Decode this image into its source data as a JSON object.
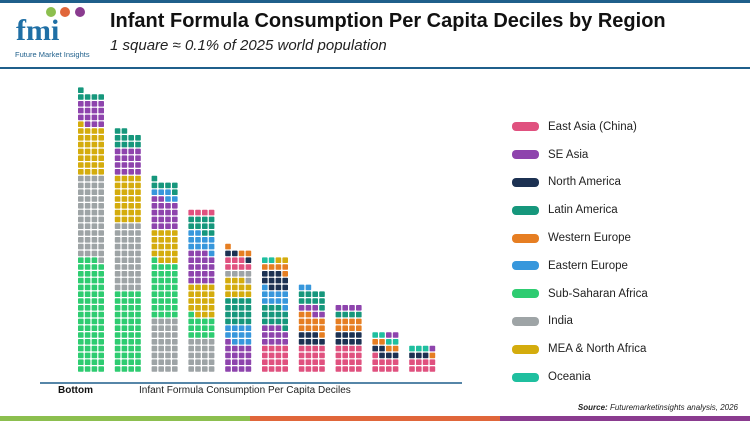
{
  "header": {
    "logo_text": "fmi",
    "logo_subtitle": "Future Market Insights",
    "title": "Infant Formula Consumption Per Capita Deciles by Region",
    "subtitle": "1 square ≈ 0.1% of 2025 world population"
  },
  "footer": {
    "source_label": "Source:",
    "source_text": "Futuremarketinsights analysis, 2026",
    "brand_bar_colors": [
      "#8cbf4f",
      "#e0663a",
      "#8a3b8f"
    ]
  },
  "chart_data": {
    "type": "waffle",
    "unit": "1 square ≈ 0.1% of 2025 world population",
    "xlabel_left": "Bottom",
    "xlabel": "Infant Formula Consumption Per Capita Deciles",
    "legend_position": "right",
    "regions": [
      {
        "name": "East Asia (China)",
        "color": "#e0517f"
      },
      {
        "name": "SE Asia",
        "color": "#8e44ad"
      },
      {
        "name": "North America",
        "color": "#1c3152"
      },
      {
        "name": "Latin America",
        "color": "#16977c"
      },
      {
        "name": "Western Europe",
        "color": "#e67e22"
      },
      {
        "name": "Eastern Europe",
        "color": "#3797dc"
      },
      {
        "name": "Sub-Saharan Africa",
        "color": "#2ecc71"
      },
      {
        "name": "India",
        "color": "#9ea4a6"
      },
      {
        "name": "MEA & North Africa",
        "color": "#d4ac0d"
      },
      {
        "name": "Oceania",
        "color": "#1fbf9f"
      }
    ],
    "columns": [
      [
        [
          "Sub-Saharan Africa",
          67
        ],
        [
          "India",
          49
        ],
        [
          "MEA & North Africa",
          29
        ],
        [
          "SE Asia",
          15
        ],
        [
          "Latin America",
          5
        ]
      ],
      [
        [
          "Sub-Saharan Africa",
          48
        ],
        [
          "India",
          40
        ],
        [
          "MEA & North Africa",
          28
        ],
        [
          "SE Asia",
          16
        ],
        [
          "Latin America",
          10
        ]
      ],
      [
        [
          "India",
          32
        ],
        [
          "Sub-Saharan Africa",
          33
        ],
        [
          "MEA & North Africa",
          19
        ],
        [
          "SE Asia",
          18
        ],
        [
          "Eastern Europe",
          5
        ],
        [
          "Latin America",
          6
        ]
      ],
      [
        [
          "India",
          20
        ],
        [
          "Sub-Saharan Africa",
          13
        ],
        [
          "MEA & North Africa",
          19
        ],
        [
          "SE Asia",
          19
        ],
        [
          "Eastern Europe",
          11
        ],
        [
          "Latin America",
          10
        ],
        [
          "East Asia (China)",
          4
        ]
      ],
      [
        [
          "SE Asia",
          17
        ],
        [
          "Eastern Europe",
          11
        ],
        [
          "Latin America",
          16
        ],
        [
          "MEA & North Africa",
          11
        ],
        [
          "India",
          5
        ],
        [
          "East Asia (China)",
          7
        ],
        [
          "North America",
          3
        ],
        [
          "Western Europe",
          3
        ]
      ],
      [
        [
          "East Asia (China)",
          16
        ],
        [
          "SE Asia",
          11
        ],
        [
          "Latin America",
          12
        ],
        [
          "Eastern Europe",
          10
        ],
        [
          "North America",
          10
        ],
        [
          "Western Europe",
          5
        ],
        [
          "Oceania",
          2
        ],
        [
          "MEA & North Africa",
          2
        ]
      ],
      [
        [
          "East Asia (China)",
          16
        ],
        [
          "North America",
          7
        ],
        [
          "Western Europe",
          11
        ],
        [
          "SE Asia",
          5
        ],
        [
          "Latin America",
          9
        ],
        [
          "Eastern Europe",
          2
        ]
      ],
      [
        [
          "East Asia (China)",
          16
        ],
        [
          "North America",
          8
        ],
        [
          "Western Europe",
          8
        ],
        [
          "Latin America",
          4
        ],
        [
          "SE Asia",
          4
        ]
      ],
      [
        [
          "East Asia (China)",
          9
        ],
        [
          "North America",
          5
        ],
        [
          "Western Europe",
          4
        ],
        [
          "Oceania",
          4
        ],
        [
          "SE Asia",
          2
        ]
      ],
      [
        [
          "East Asia (China)",
          8
        ],
        [
          "North America",
          3
        ],
        [
          "Western Europe",
          1
        ],
        [
          "Oceania",
          3
        ],
        [
          "SE Asia",
          1
        ]
      ]
    ]
  }
}
